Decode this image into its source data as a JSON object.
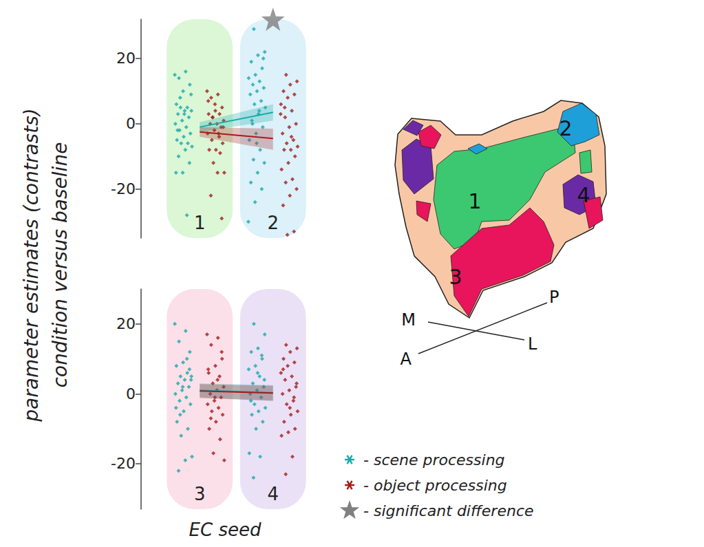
{
  "chart_data": [
    {
      "type": "scatter",
      "categories": [
        "1",
        "2"
      ],
      "ylim": [
        -35,
        32
      ],
      "yticks": [
        -20,
        0,
        20
      ],
      "significant": [
        "2"
      ],
      "series": [
        {
          "name": "scene processing",
          "color": "#1aa9a9",
          "marker": "diamond",
          "values": [
            [
              15,
              16,
              14,
              12,
              10,
              6,
              5,
              5,
              4,
              4,
              3,
              2,
              1,
              0,
              -1,
              -2,
              -3,
              -4,
              -5,
              -6,
              -6,
              -7,
              -8,
              -10,
              -12,
              -15,
              -15,
              -28,
              8,
              9,
              3,
              -2
            ],
            [
              29,
              22,
              21,
              19,
              17,
              15,
              14,
              13,
              12,
              11,
              10,
              9,
              7,
              6,
              5,
              3,
              1,
              -1,
              -3,
              -5,
              -8,
              -11,
              -12,
              -15,
              -18,
              -20,
              -24,
              -30,
              4,
              0,
              20,
              -6
            ]
          ],
          "fit": {
            "values": [
              -1,
              3.5
            ],
            "lower": [
              -2.5,
              1
            ],
            "upper": [
              0.5,
              6
            ]
          }
        },
        {
          "name": "object processing",
          "color": "#a51c1c",
          "marker": "diamond",
          "values": [
            [
              10,
              9,
              8,
              5,
              4,
              3,
              3,
              2,
              1,
              0,
              0,
              -1,
              -2,
              -3,
              -3,
              -5,
              -6,
              -8,
              -8,
              -9,
              -12,
              -15,
              -15,
              -22,
              -29,
              6,
              7,
              -4,
              2,
              -1
            ],
            [
              15,
              13,
              12,
              10,
              9,
              8,
              6,
              4,
              2,
              0,
              -1,
              -3,
              -5,
              -6,
              -7,
              -8,
              -8,
              -10,
              -12,
              -14,
              -17,
              -18,
              -20,
              -22,
              -25,
              -33,
              -34,
              3,
              -4,
              5
            ]
          ],
          "fit": {
            "values": [
              -2.5,
              -4.5
            ],
            "lower": [
              -4,
              -8
            ],
            "upper": [
              -1,
              -1.5
            ]
          }
        }
      ]
    },
    {
      "type": "scatter",
      "categories": [
        "3",
        "4"
      ],
      "ylim": [
        -33,
        30
      ],
      "yticks": [
        -20,
        0,
        20
      ],
      "significant": [],
      "series": [
        {
          "name": "scene processing",
          "color": "#1aa9a9",
          "marker": "diamond",
          "values": [
            [
              20,
              18,
              15,
              12,
              9,
              8,
              6,
              5,
              5,
              4,
              3,
              2,
              1,
              0,
              -1,
              -2,
              -3,
              -5,
              -8,
              -10,
              -12,
              -18,
              -19,
              -22,
              7,
              2,
              -4,
              10,
              -6,
              4
            ],
            [
              20,
              17,
              13,
              12,
              10,
              8,
              7,
              5,
              3,
              2,
              1,
              0,
              -1,
              -3,
              -4,
              -5,
              -6,
              -8,
              -10,
              -17,
              -18,
              -24,
              4,
              6,
              -2,
              11
            ]
          ],
          "fit": {
            "values": [
              1,
              0.3
            ],
            "lower": [
              -1,
              -2
            ],
            "upper": [
              3,
              2.5
            ]
          }
        },
        {
          "name": "object processing",
          "color": "#a51c1c",
          "marker": "diamond",
          "values": [
            [
              17,
              16,
              14,
              10,
              8,
              6,
              5,
              3,
              2,
              1,
              0,
              -1,
              -2,
              -3,
              -4,
              -5,
              -6,
              -8,
              -10,
              -13,
              -17,
              -19,
              4,
              -7,
              12,
              -1,
              7
            ],
            [
              14,
              13,
              12,
              10,
              9,
              8,
              6,
              5,
              4,
              2,
              1,
              0,
              -2,
              -3,
              -5,
              -6,
              -8,
              -10,
              -11,
              -12,
              -18,
              -23,
              3,
              -4,
              7,
              -1
            ]
          ],
          "fit": {
            "values": [
              0.8,
              0.2
            ],
            "lower": [
              -1.2,
              -2
            ],
            "upper": [
              2.8,
              2.3
            ]
          }
        }
      ]
    }
  ],
  "y_label": [
    "parameter estimates (contrasts)",
    "condition versus baseline"
  ],
  "x_label": "EC seed",
  "legend": "lower right",
  "legend_entries": [
    "- scene processing",
    "- object processing",
    "- significant difference"
  ],
  "diagram": {
    "regions": [
      {
        "label": "1",
        "color": "#3cc870"
      },
      {
        "label": "2",
        "color": "#1e9fd8"
      },
      {
        "label": "3",
        "color": "#e8145c"
      },
      {
        "label": "4",
        "color": "#6b2aa5"
      }
    ],
    "orientation_labels": [
      "M",
      "L",
      "A",
      "P"
    ]
  }
}
